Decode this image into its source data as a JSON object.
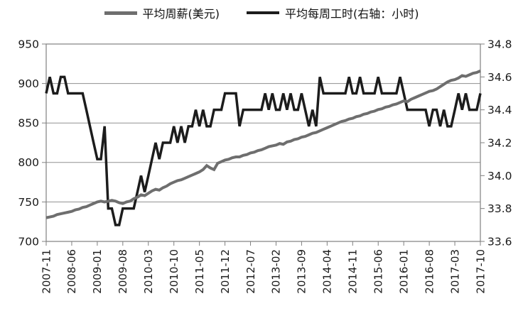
{
  "legend": [
    {
      "label": "平均周薪(美元)",
      "color": "#6e6e6e"
    },
    {
      "label": "平均每周工时(右轴：小时)",
      "color": "#1c1c1c"
    }
  ],
  "chart_data": {
    "type": "line",
    "title": "",
    "x_frequency": "monthly",
    "x_start": "2007-11",
    "x_end": "2017-10",
    "x_tick_every_n_points": 7,
    "x_tick_labels": [
      "2007-11",
      "2008-06",
      "2009-01",
      "2009-08",
      "2010-03",
      "2010-10",
      "2011-05",
      "2011-12",
      "2012-07",
      "2013-02",
      "2013-09",
      "2014-04",
      "2014-11",
      "2015-06",
      "2016-01",
      "2016-08",
      "2017-03",
      "2017-10"
    ],
    "grid": "horizontal-left-axis-only",
    "legend_position": "top-center",
    "left_axis": {
      "min": 700,
      "max": 950,
      "ticks": [
        "950",
        "900",
        "850",
        "800",
        "750",
        "700"
      ]
    },
    "right_axis": {
      "min": 33.6,
      "max": 34.8,
      "ticks": [
        "34.8",
        "34.6",
        "34.4",
        "34.2",
        "34.0",
        "33.8",
        "33.6"
      ]
    },
    "series": [
      {
        "name": "平均周薪(美元)",
        "axis": "left",
        "color": "#6e6e6e",
        "values": [
          730,
          731,
          732,
          734,
          735,
          736,
          737,
          738,
          740,
          741,
          743,
          744,
          746,
          748,
          750,
          751,
          750,
          751,
          752,
          751,
          749,
          748,
          750,
          751,
          754,
          756,
          759,
          758,
          761,
          764,
          766,
          765,
          768,
          770,
          773,
          775,
          777,
          778,
          780,
          782,
          784,
          786,
          788,
          791,
          796,
          793,
          791,
          799,
          801,
          803,
          804,
          806,
          807,
          807,
          809,
          810,
          812,
          813,
          815,
          816,
          818,
          820,
          821,
          822,
          824,
          823,
          826,
          827,
          829,
          830,
          832,
          833,
          835,
          837,
          838,
          840,
          842,
          844,
          846,
          848,
          850,
          852,
          853,
          855,
          856,
          858,
          859,
          861,
          862,
          864,
          865,
          867,
          868,
          870,
          871,
          873,
          874,
          876,
          878,
          877,
          880,
          882,
          884,
          886,
          888,
          890,
          891,
          893,
          896,
          899,
          902,
          904,
          905,
          907,
          910,
          909,
          911,
          913,
          914,
          916
        ]
      },
      {
        "name": "平均每周工时(右轴：小时)",
        "axis": "right",
        "color": "#1c1c1c",
        "values": [
          34.5,
          34.6,
          34.5,
          34.5,
          34.6,
          34.6,
          34.5,
          34.5,
          34.5,
          34.5,
          34.5,
          34.4,
          34.3,
          34.2,
          34.1,
          34.1,
          34.3,
          33.8,
          33.8,
          33.7,
          33.7,
          33.8,
          33.8,
          33.8,
          33.8,
          33.9,
          34.0,
          33.9,
          34.0,
          34.1,
          34.2,
          34.1,
          34.2,
          34.2,
          34.2,
          34.3,
          34.2,
          34.3,
          34.2,
          34.3,
          34.3,
          34.4,
          34.3,
          34.4,
          34.3,
          34.3,
          34.4,
          34.4,
          34.4,
          34.5,
          34.5,
          34.5,
          34.5,
          34.3,
          34.4,
          34.4,
          34.4,
          34.4,
          34.4,
          34.4,
          34.5,
          34.4,
          34.5,
          34.4,
          34.4,
          34.5,
          34.4,
          34.5,
          34.4,
          34.4,
          34.5,
          34.4,
          34.3,
          34.4,
          34.3,
          34.6,
          34.5,
          34.5,
          34.5,
          34.5,
          34.5,
          34.5,
          34.5,
          34.6,
          34.5,
          34.5,
          34.6,
          34.5,
          34.5,
          34.5,
          34.5,
          34.6,
          34.5,
          34.5,
          34.5,
          34.5,
          34.5,
          34.6,
          34.5,
          34.4,
          34.4,
          34.4,
          34.4,
          34.4,
          34.4,
          34.3,
          34.4,
          34.4,
          34.3,
          34.4,
          34.3,
          34.3,
          34.4,
          34.5,
          34.4,
          34.5,
          34.4,
          34.4,
          34.4,
          34.5
        ]
      }
    ]
  },
  "colors": {
    "background": "#ffffff",
    "gridline": "#909090",
    "axis": "#808080",
    "text": "#1a1a1a"
  }
}
